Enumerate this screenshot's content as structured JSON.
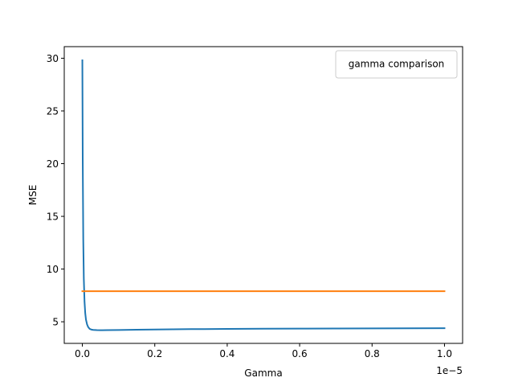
{
  "chart_data": {
    "type": "line",
    "title": "",
    "xlabel": "Gamma",
    "ylabel": "MSE",
    "x_offset_text": "1e−5",
    "x_scale_factor": 1e-05,
    "xlim": [
      -0.05,
      1.05
    ],
    "ylim": [
      2.95,
      31.1
    ],
    "x_ticks": [
      0.0,
      0.2,
      0.4,
      0.6,
      0.8,
      1.0
    ],
    "x_tick_labels": [
      "0.0",
      "0.2",
      "0.4",
      "0.6",
      "0.8",
      "1.0"
    ],
    "y_ticks": [
      5,
      10,
      15,
      20,
      25,
      30
    ],
    "y_tick_labels": [
      "5",
      "10",
      "15",
      "20",
      "25",
      "30"
    ],
    "grid": false,
    "legend": {
      "title": "gamma comparison",
      "position": "upper right",
      "entries": []
    },
    "series": [
      {
        "color": "#1f77b4",
        "x": [
          0.0,
          0.001,
          0.0025,
          0.004,
          0.006,
          0.008,
          0.01,
          0.013,
          0.016,
          0.02,
          0.025,
          0.03,
          0.04,
          0.05,
          0.07,
          0.1,
          0.15,
          0.2,
          0.3,
          0.4,
          0.5,
          0.6,
          0.7,
          0.8,
          0.9,
          1.0
        ],
        "y": [
          29.8,
          20.5,
          12.8,
          9.1,
          6.9,
          5.8,
          5.2,
          4.75,
          4.5,
          4.33,
          4.26,
          4.23,
          4.21,
          4.2,
          4.21,
          4.22,
          4.25,
          4.27,
          4.3,
          4.32,
          4.34,
          4.35,
          4.36,
          4.37,
          4.38,
          4.39
        ]
      },
      {
        "color": "#ff7f0e",
        "x": [
          0.0,
          1.0
        ],
        "y": [
          7.9,
          7.9
        ]
      }
    ]
  }
}
